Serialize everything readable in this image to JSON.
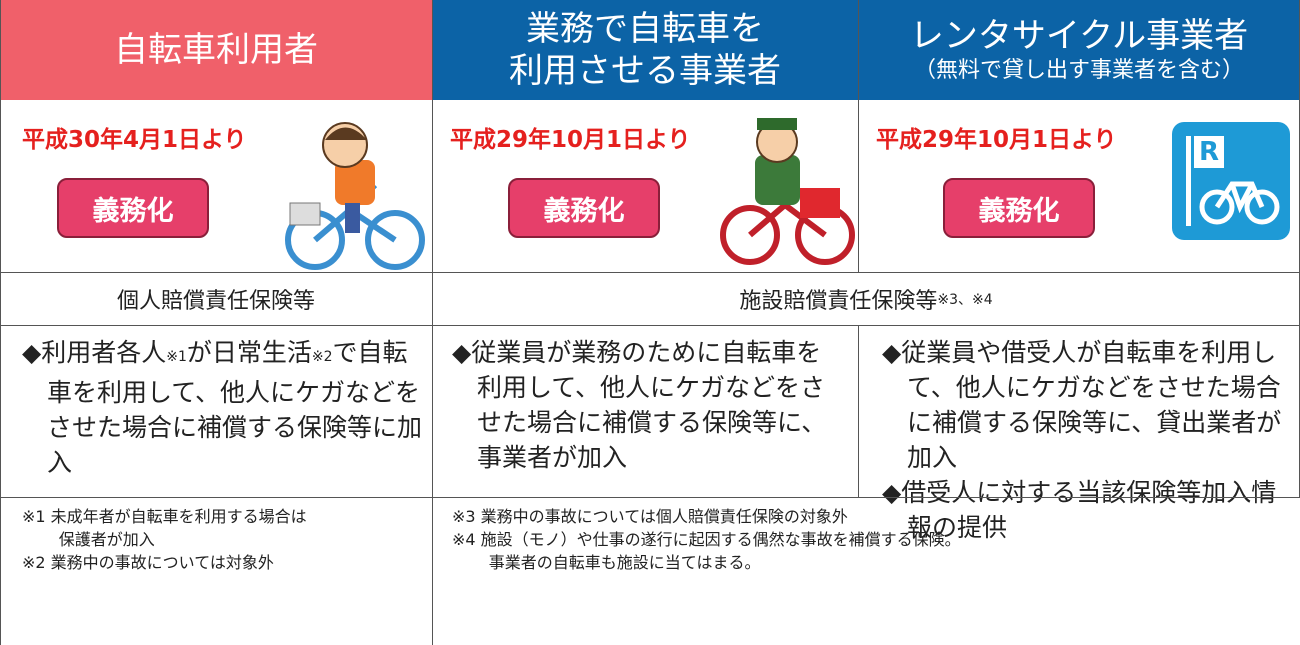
{
  "headers": [
    {
      "lines": [
        "自転車利用者"
      ]
    },
    {
      "lines": [
        "業務で自転車を",
        "利用させる事業者"
      ]
    },
    {
      "lines": [
        "レンタサイクル事業者",
        "（無料で貸し出す事業者を含む）"
      ]
    }
  ],
  "start_dates": [
    "平成30年4月1日より",
    "平成29年10月1日より",
    "平成29年10月1日より"
  ],
  "badges": [
    "義務化",
    "義務化",
    "義務化"
  ],
  "parking_icon": "R",
  "insurance_types": [
    {
      "parts": [
        "個人賠償責任保険等"
      ]
    },
    {
      "parts": [
        "施設賠償責任保険等",
        "※3、※4"
      ]
    }
  ],
  "descriptions": [
    {
      "items": [
        [
          "◆利用者各人",
          "※1",
          "が日常生活",
          "※2",
          "で自転車を利用して、他人にケガなどをさせた場合に補償する保険等に加入"
        ]
      ]
    },
    {
      "items": [
        [
          "◆従業員が業務のために自転車を利用して、他人にケガなどをさせた場合に補償する保険等に、事業者が加入"
        ]
      ]
    },
    {
      "items": [
        [
          "◆従業員や借受人が自転車を利用して、他人にケガなどをさせた場合に補償する保険等に、貸出業者が加入"
        ],
        [
          "◆借受人に対する当該保険等加入情報の提供"
        ]
      ]
    }
  ],
  "notes": [
    [
      "※1 未成年者が自転車を利用する場合は",
      "保護者が加入",
      "※2 業務中の事故については対象外"
    ],
    [
      "※3 業務中の事故については個人賠償責任保険の対象外",
      "※4 施設（モノ）や仕事の遂行に起因する偶然な事故を補償する保険。",
      "事業者の自転車も施設に当てはまる。"
    ]
  ]
}
